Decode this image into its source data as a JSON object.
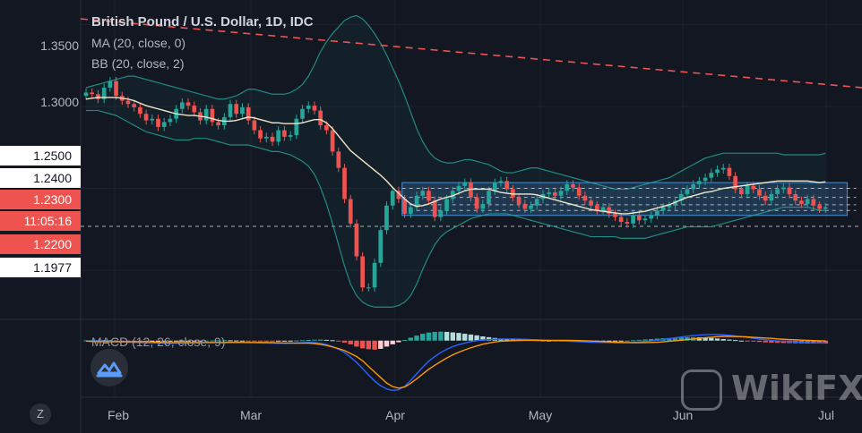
{
  "legend": {
    "title": "British Pound / U.S. Dollar, 1D, IDC",
    "ma": "MA (20, close, 0)",
    "bb": "BB (20, close, 2)",
    "macd": "MACD (12, 26, close, 9)"
  },
  "y_ticks": [
    "1.3500",
    "1.3000",
    "1.2500",
    "1.2400",
    "1.2300",
    "1.2200",
    "1.1977"
  ],
  "countdown": "11:05:16",
  "x_ticks": [
    "Feb",
    "Mar",
    "Apr",
    "May",
    "Jun",
    "Jul"
  ],
  "scale_mode_label": "Z",
  "watermark": "WikiFX",
  "colors": {
    "background": "#131722",
    "up": "#26a69a",
    "down": "#ef5350",
    "ma": "#f0e6c8",
    "bb": "#26a69a",
    "macd_line": "#2962ff",
    "signal_line": "#ff9800",
    "box": "#4a90d9"
  },
  "chart_data": {
    "type": "candlestick",
    "title": "British Pound / U.S. Dollar, 1D, IDC",
    "ylim": [
      1.17,
      1.365
    ],
    "levels": {
      "box_top": 1.2535,
      "box_bottom": 1.2335,
      "box_start": "2020-04-01",
      "box_end": "2020-06-30",
      "dashed_lines": [
        1.25,
        1.2445,
        1.24,
        1.2365,
        1.2268
      ],
      "trendline": [
        {
          "x": "2020-01-27",
          "y": 1.3535
        },
        {
          "x": "2020-07-03",
          "y": 1.3115
        }
      ]
    },
    "x_start": "2020-01-27",
    "x_end": "2020-07-03",
    "close": [
      1.3085,
      1.3075,
      1.3045,
      1.3115,
      1.3155,
      1.3065,
      1.3035,
      1.3015,
      1.2995,
      1.2955,
      1.2915,
      1.2925,
      1.2875,
      1.2905,
      1.2925,
      1.2985,
      1.3025,
      1.3005,
      1.2965,
      1.2915,
      1.2985,
      1.2905,
      1.2885,
      1.2935,
      1.3015,
      1.2955,
      1.2995,
      1.2915,
      1.2855,
      1.2805,
      1.2815,
      1.2785,
      1.2855,
      1.2815,
      1.2825,
      1.2925,
      1.2985,
      1.3005,
      1.2975,
      1.2885,
      1.2855,
      1.2725,
      1.2625,
      1.2435,
      1.2285,
      1.2085,
      1.1895,
      1.1895,
      1.2045,
      1.2245,
      1.2395,
      1.2485,
      1.2435,
      1.2345,
      1.2385,
      1.2455,
      1.2485,
      1.2425,
      1.2325,
      1.2365,
      1.2435,
      1.2485,
      1.2515,
      1.2535,
      1.2445,
      1.2375,
      1.2405,
      1.2485,
      1.2535,
      1.2545,
      1.2495,
      1.2445,
      1.2405,
      1.2375,
      1.2395,
      1.2435,
      1.2465,
      1.2475,
      1.2455,
      1.2485,
      1.2525,
      1.2505,
      1.2455,
      1.2425,
      1.2395,
      1.2365,
      1.2385,
      1.2345,
      1.2325,
      1.2295,
      1.2285,
      1.2335,
      1.2305,
      1.2315,
      1.2335,
      1.2365,
      1.2385,
      1.2395,
      1.2425,
      1.2465,
      1.2495,
      1.2525,
      1.2545,
      1.2565,
      1.2595,
      1.2615,
      1.2625,
      1.2575,
      1.2495,
      1.2465,
      1.2515,
      1.2495,
      1.2455,
      1.2425,
      1.2465,
      1.2495,
      1.2505,
      1.2465,
      1.2425,
      1.2405,
      1.2435,
      1.2395,
      1.2375,
      1.2385
    ],
    "bb_upper": [
      1.3115,
      1.3125,
      1.3135,
      1.3145,
      1.3155,
      1.3165,
      1.3175,
      1.3185,
      1.3185,
      1.3175,
      1.3165,
      1.3155,
      1.3145,
      1.3135,
      1.3125,
      1.3115,
      1.3105,
      1.3095,
      1.3085,
      1.3075,
      1.3065,
      1.3055,
      1.3045,
      1.3045,
      1.3055,
      1.3065,
      1.3085,
      1.3105,
      1.3105,
      1.3095,
      1.3085,
      1.3075,
      1.3075,
      1.3075,
      1.3085,
      1.3105,
      1.3135,
      1.3185,
      1.3255,
      1.3335,
      1.3395,
      1.3445,
      1.3485,
      1.3525,
      1.3545,
      1.3555,
      1.3535,
      1.3495,
      1.3445,
      1.3385,
      1.3315,
      1.3235,
      1.3155,
      1.3065,
      1.2965,
      1.2865,
      1.2785,
      1.2725,
      1.2685,
      1.2665,
      1.2655,
      1.2655,
      1.2665,
      1.2675,
      1.2675,
      1.2665,
      1.2655,
      1.2645,
      1.2625,
      1.2605,
      1.2595,
      1.2595,
      1.2605,
      1.2615,
      1.2625,
      1.2625,
      1.2615,
      1.2605,
      1.2595,
      1.2585,
      1.2575,
      1.2565,
      1.2555,
      1.2545,
      1.2535,
      1.2525,
      1.2515,
      1.2505,
      1.2495,
      1.2495,
      1.2495,
      1.2505,
      1.2515,
      1.2525,
      1.2535,
      1.2545,
      1.2555,
      1.2565,
      1.2585,
      1.2605,
      1.2625,
      1.2645,
      1.2665,
      1.2685,
      1.2695,
      1.2705,
      1.2715,
      1.2715,
      1.2715,
      1.2715,
      1.2715,
      1.2715,
      1.2715,
      1.2715,
      1.2715,
      1.2715,
      1.2705,
      1.2705,
      1.2705,
      1.2705,
      1.2705,
      1.2705,
      1.2705,
      1.2715
    ],
    "bb_lower": [
      1.2975,
      1.2975,
      1.2975,
      1.2965,
      1.2955,
      1.2945,
      1.2925,
      1.2905,
      1.2885,
      1.2865,
      1.2845,
      1.2835,
      1.2825,
      1.2815,
      1.2805,
      1.2795,
      1.2795,
      1.2795,
      1.2805,
      1.2805,
      1.2805,
      1.2795,
      1.2785,
      1.2775,
      1.2765,
      1.2765,
      1.2765,
      1.2765,
      1.2755,
      1.2745,
      1.2735,
      1.2725,
      1.2725,
      1.2715,
      1.2705,
      1.2685,
      1.2665,
      1.2635,
      1.2585,
      1.2505,
      1.2405,
      1.2285,
      1.2155,
      1.2025,
      1.1915,
      1.1845,
      1.1805,
      1.1785,
      1.1775,
      1.1775,
      1.1775,
      1.1775,
      1.1785,
      1.1805,
      1.1845,
      1.1915,
      1.2005,
      1.2085,
      1.2155,
      1.2205,
      1.2235,
      1.2255,
      1.2275,
      1.2295,
      1.2315,
      1.2325,
      1.2335,
      1.2345,
      1.2345,
      1.2345,
      1.2345,
      1.2335,
      1.2325,
      1.2315,
      1.2305,
      1.2295,
      1.2285,
      1.2275,
      1.2265,
      1.2255,
      1.2245,
      1.2235,
      1.2225,
      1.2215,
      1.2205,
      1.2205,
      1.2205,
      1.2205,
      1.2205,
      1.2195,
      1.2195,
      1.2195,
      1.2195,
      1.2195,
      1.2205,
      1.2215,
      1.2225,
      1.2235,
      1.2245,
      1.2255,
      1.2265,
      1.2265,
      1.2265,
      1.2265,
      1.2265,
      1.2275,
      1.2285,
      1.2295,
      1.2305,
      1.2315,
      1.2325,
      1.2335,
      1.2345,
      1.2355,
      1.2365,
      1.2375,
      1.2385,
      1.2385,
      1.2385,
      1.2385,
      1.2385,
      1.2375,
      1.2365,
      1.2365
    ],
    "macd": {
      "ylim": [
        -0.04,
        0.014
      ],
      "histogram": [
        0.0002,
        0.0003,
        0.0004,
        0.0003,
        0.0002,
        0.0,
        -0.0002,
        -0.0004,
        -0.0006,
        -0.0008,
        -0.001,
        -0.0009,
        -0.0008,
        -0.0007,
        -0.0006,
        -0.0005,
        -0.0004,
        -0.0003,
        -0.0002,
        -0.0001,
        0.0,
        0.0001,
        0.0002,
        0.0003,
        0.0002,
        0.0001,
        0.0,
        -0.0001,
        -0.0002,
        -0.0003,
        -0.0004,
        -0.0004,
        -0.0003,
        -0.0002,
        -0.0001,
        0.0001,
        0.0003,
        0.0005,
        0.0007,
        0.0008,
        0.0006,
        0.0003,
        -0.0005,
        -0.0015,
        -0.0028,
        -0.0045,
        -0.0058,
        -0.0065,
        -0.0068,
        -0.0062,
        -0.0045,
        -0.0028,
        -0.0012,
        0.0005,
        0.0022,
        0.0038,
        0.0052,
        0.0061,
        0.0066,
        0.0068,
        0.0066,
        0.0062,
        0.0058,
        0.0052,
        0.0046,
        0.004,
        0.0032,
        0.0026,
        0.002,
        0.0016,
        0.0014,
        0.0012,
        0.001,
        0.0008,
        0.0006,
        0.0004,
        0.0002,
        0.0,
        -0.0002,
        -0.0004,
        -0.0006,
        -0.0007,
        -0.0008,
        -0.0009,
        -0.0009,
        -0.0008,
        -0.0007,
        -0.0006,
        -0.0004,
        -0.0002,
        0.0,
        0.0003,
        0.0006,
        0.0009,
        0.0012,
        0.0015,
        0.0018,
        0.002,
        0.0022,
        0.0024,
        0.0025,
        0.0026,
        0.0025,
        0.0023,
        0.002,
        0.0016,
        0.0012,
        0.0008,
        0.0004,
        0.0,
        -0.0004,
        -0.0007,
        -0.001,
        -0.0013,
        -0.0015,
        -0.0017,
        -0.0018,
        -0.0019,
        -0.002,
        -0.0021,
        -0.0022,
        -0.0022,
        -0.0022,
        -0.0022
      ],
      "macd_line": [
        -0.0002,
        -0.0003,
        -0.0004,
        -0.0005,
        -0.0006,
        -0.0008,
        -0.001,
        -0.0012,
        -0.0014,
        -0.0016,
        -0.0018,
        -0.0019,
        -0.002,
        -0.0021,
        -0.0021,
        -0.002,
        -0.0019,
        -0.0018,
        -0.0017,
        -0.0016,
        -0.0015,
        -0.0014,
        -0.0013,
        -0.0012,
        -0.0012,
        -0.0013,
        -0.0014,
        -0.0015,
        -0.0016,
        -0.0017,
        -0.0018,
        -0.0019,
        -0.002,
        -0.002,
        -0.0019,
        -0.0018,
        -0.0016,
        -0.0014,
        -0.0015,
        -0.002,
        -0.003,
        -0.0045,
        -0.0065,
        -0.009,
        -0.0125,
        -0.0165,
        -0.021,
        -0.026,
        -0.0305,
        -0.034,
        -0.0365,
        -0.0375,
        -0.037,
        -0.0345,
        -0.03,
        -0.025,
        -0.02,
        -0.0155,
        -0.012,
        -0.009,
        -0.0065,
        -0.0045,
        -0.003,
        -0.0018,
        -0.0008,
        0.0,
        0.0005,
        0.0008,
        0.001,
        0.0011,
        0.0012,
        0.0012,
        0.0011,
        0.001,
        0.0008,
        0.0006,
        0.0004,
        0.0002,
        0.0,
        -0.0002,
        -0.0004,
        -0.0006,
        -0.0008,
        -0.001,
        -0.0012,
        -0.0013,
        -0.0014,
        -0.0015,
        -0.0016,
        -0.0016,
        -0.0015,
        -0.0013,
        -0.001,
        -0.0006,
        -0.0002,
        0.0003,
        0.0009,
        0.0015,
        0.0021,
        0.0027,
        0.0033,
        0.0038,
        0.0042,
        0.0045,
        0.0046,
        0.0046,
        0.0044,
        0.004,
        0.0035,
        0.003,
        0.0024,
        0.0018,
        0.0012,
        0.0007,
        0.0002,
        -0.0002,
        -0.0005,
        -0.0008,
        -0.001,
        -0.0012,
        -0.0014,
        -0.0016,
        -0.0017,
        -0.0018
      ],
      "signal_line": [
        -0.0004,
        -0.0006,
        -0.0008,
        -0.0008,
        -0.0008,
        -0.0008,
        -0.0008,
        -0.0008,
        -0.0008,
        -0.0008,
        -0.0008,
        -0.001,
        -0.0012,
        -0.0014,
        -0.0015,
        -0.0015,
        -0.0015,
        -0.0015,
        -0.0015,
        -0.0015,
        -0.0015,
        -0.0015,
        -0.0015,
        -0.0015,
        -0.0014,
        -0.0014,
        -0.0014,
        -0.0014,
        -0.0014,
        -0.0014,
        -0.0014,
        -0.0015,
        -0.0017,
        -0.0018,
        -0.0018,
        -0.0019,
        -0.0019,
        -0.0019,
        -0.0022,
        -0.0028,
        -0.0036,
        -0.0048,
        -0.006,
        -0.0075,
        -0.0097,
        -0.012,
        -0.0152,
        -0.0195,
        -0.0237,
        -0.0278,
        -0.032,
        -0.0347,
        -0.0358,
        -0.035,
        -0.0322,
        -0.0288,
        -0.0252,
        -0.0216,
        -0.0186,
        -0.0158,
        -0.0131,
        -0.0107,
        -0.0088,
        -0.007,
        -0.0054,
        -0.004,
        -0.0027,
        -0.0018,
        -0.001,
        -0.0005,
        -0.0002,
        0.0,
        0.0001,
        0.0002,
        0.0002,
        0.0002,
        0.0002,
        0.0002,
        0.0002,
        0.0002,
        0.0002,
        0.0001,
        0.0,
        -0.0001,
        -0.0003,
        -0.0005,
        -0.0007,
        -0.0009,
        -0.0012,
        -0.0014,
        -0.0015,
        -0.0016,
        -0.0016,
        -0.0015,
        -0.0014,
        -0.0012,
        -0.0009,
        -0.0005,
        -0.0001,
        0.0003,
        0.0008,
        0.0012,
        0.0017,
        0.0022,
        0.0026,
        0.003,
        0.0032,
        0.0032,
        0.0031,
        0.003,
        0.0028,
        0.0025,
        0.0022,
        0.002,
        0.0017,
        0.0013,
        0.001,
        0.0008,
        0.0006,
        0.0004,
        0.0002,
        0.0,
        -0.0001,
        -0.0002
      ]
    }
  }
}
